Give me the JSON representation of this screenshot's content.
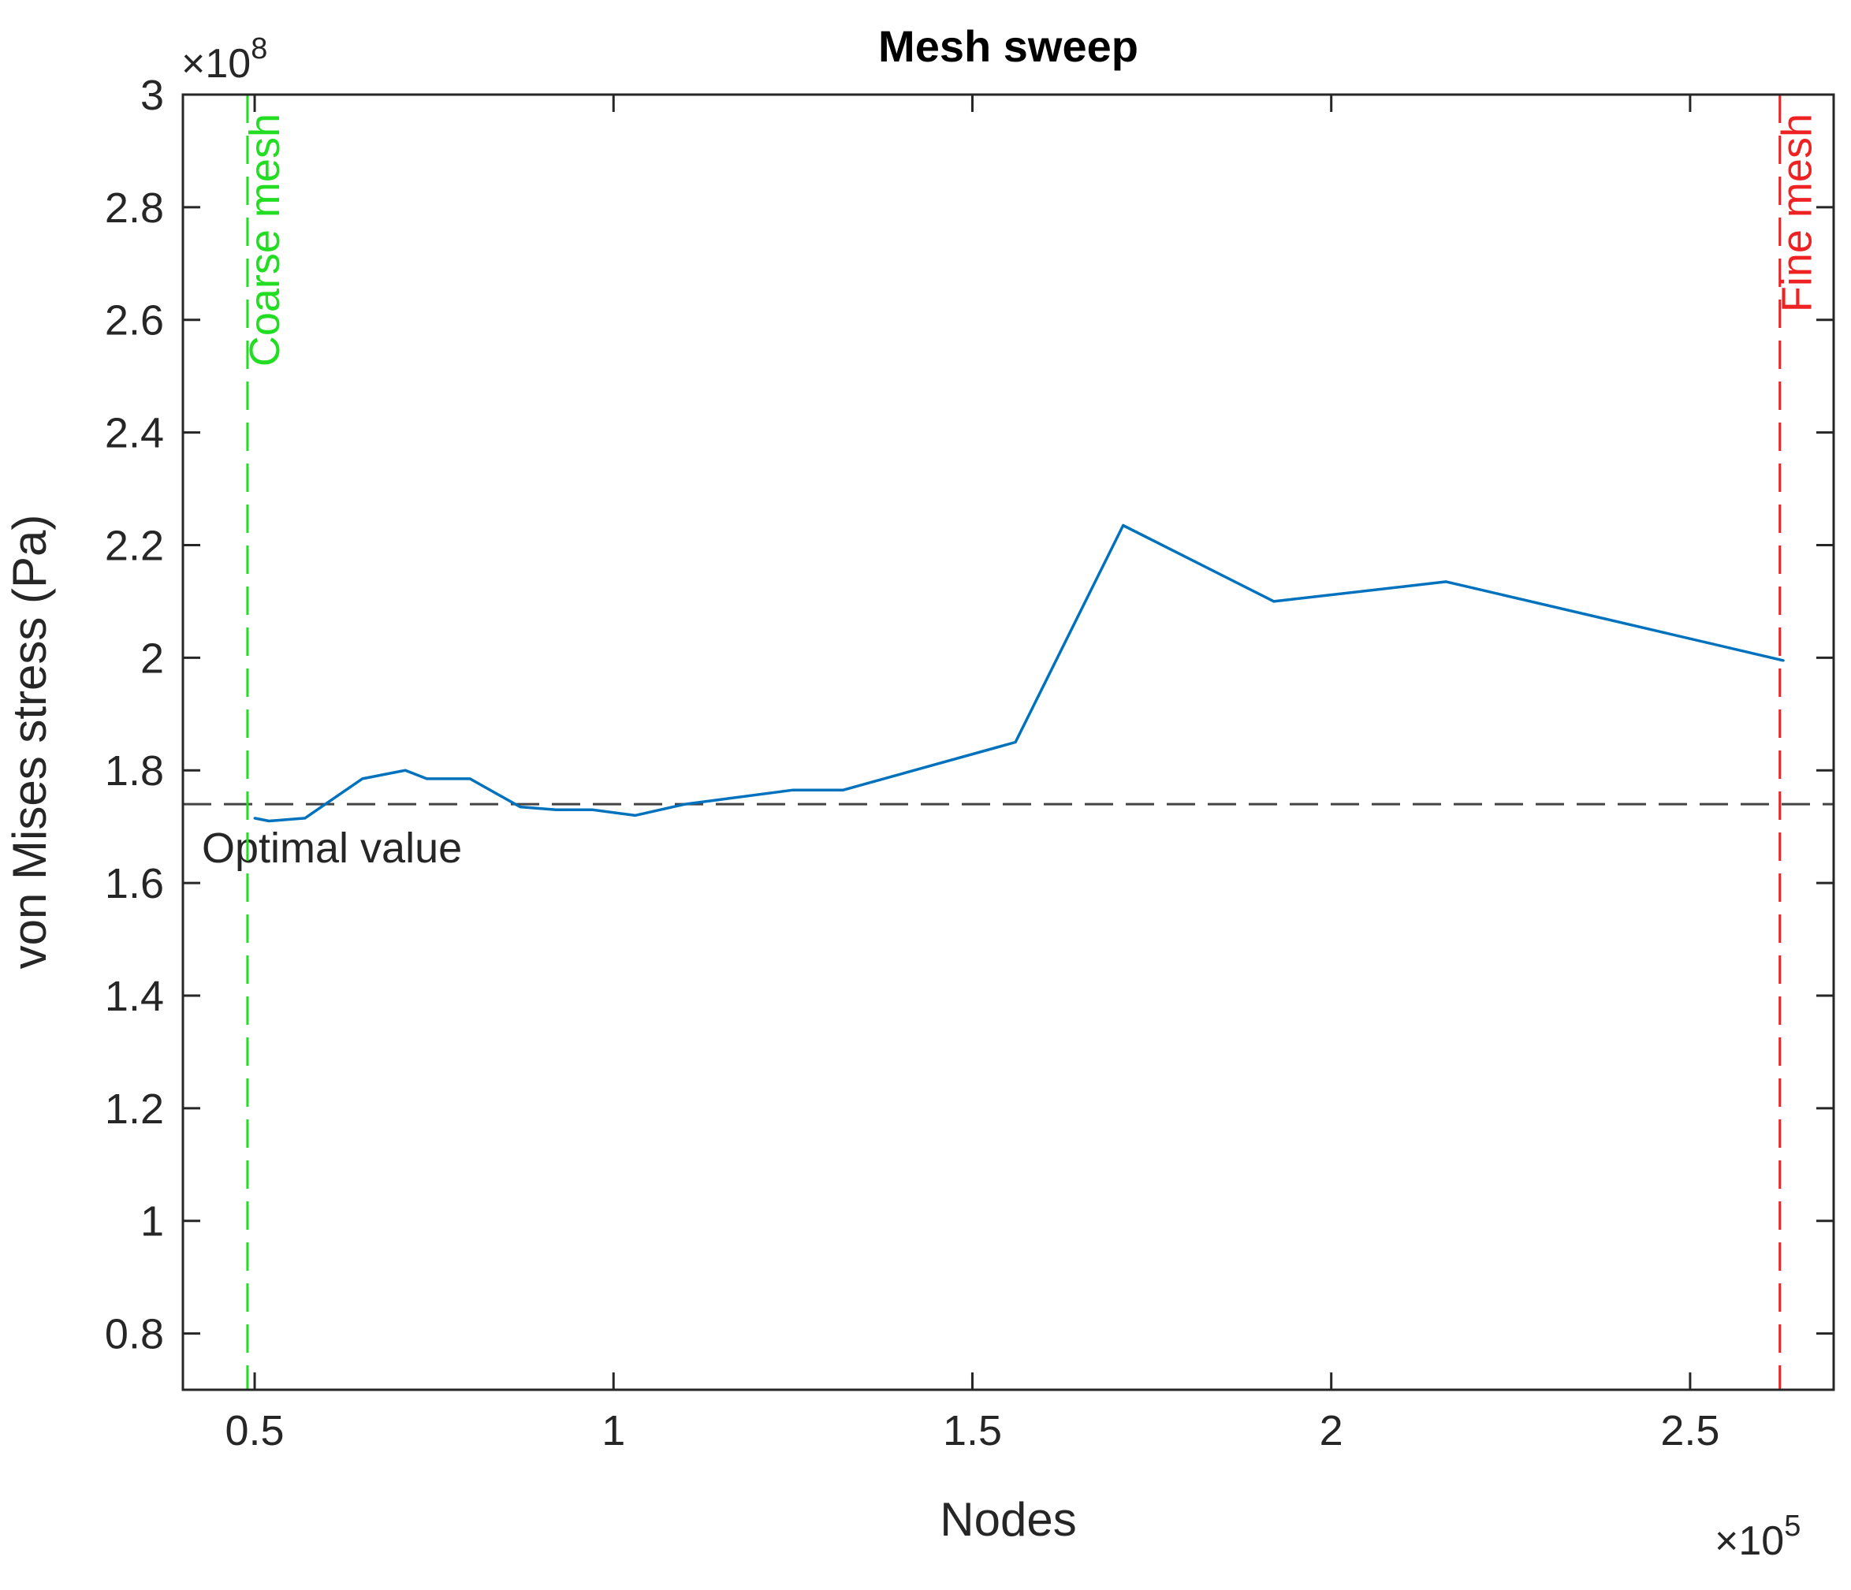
{
  "chart_data": {
    "type": "line",
    "title": "Mesh sweep",
    "xlabel": "Nodes",
    "ylabel": "von Mises stress (Pa)",
    "x_exponent_label": "×10",
    "x_exponent": "5",
    "y_exponent_label": "×10",
    "y_exponent": "8",
    "xlim": [
      0.4,
      2.7
    ],
    "ylim": [
      0.7,
      3.0
    ],
    "x_ticks": [
      0.5,
      1,
      1.5,
      2,
      2.5
    ],
    "x_tick_labels": [
      "0.5",
      "1",
      "1.5",
      "2",
      "2.5"
    ],
    "y_ticks": [
      0.8,
      1.0,
      1.2,
      1.4,
      1.6,
      1.8,
      2.0,
      2.2,
      2.4,
      2.6,
      2.8,
      3.0
    ],
    "y_tick_labels": [
      "0.8",
      "1",
      "1.2",
      "1.4",
      "1.6",
      "1.8",
      "2",
      "2.2",
      "2.4",
      "2.6",
      "2.8",
      "3"
    ],
    "grid": false,
    "series": [
      {
        "color": "#0072BD",
        "x": [
          0.5,
          0.52,
          0.57,
          0.65,
          0.71,
          0.74,
          0.8,
          0.87,
          0.92,
          0.97,
          1.03,
          1.1,
          1.25,
          1.32,
          1.56,
          1.71,
          1.92,
          2.16,
          2.63
        ],
        "y": [
          1.715,
          1.71,
          1.715,
          1.785,
          1.8,
          1.785,
          1.785,
          1.735,
          1.73,
          1.73,
          1.72,
          1.74,
          1.765,
          1.765,
          1.85,
          2.235,
          2.1,
          2.135,
          1.995
        ]
      }
    ],
    "reference_lines": [
      {
        "orientation": "horizontal",
        "value": 1.74,
        "label": "Optimal value",
        "color": "#444444",
        "style": "dashed"
      },
      {
        "orientation": "vertical",
        "value": 0.49,
        "label": "Coarse mesh",
        "color": "#22dd22",
        "style": "dashed"
      },
      {
        "orientation": "vertical",
        "value": 2.625,
        "label": "Fine mesh",
        "color": "#ee2222",
        "style": "dashed"
      }
    ]
  }
}
